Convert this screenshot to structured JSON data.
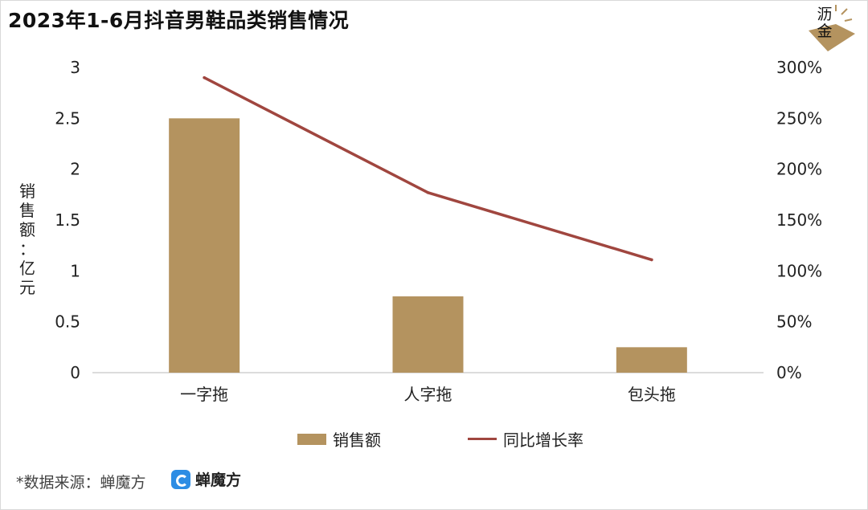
{
  "title": "2023年1-6月抖音男鞋品类销售情况",
  "logo_text": "沥金",
  "source": "*数据来源：蝉魔方",
  "brand_name": "蝉魔方",
  "brand_icon": "c-logo-icon",
  "chart_data": {
    "type": "bar",
    "categories": [
      "一字拖",
      "人字拖",
      "包头拖"
    ],
    "ylabel": "销售额：亿元",
    "ylabel_chars": [
      "销",
      "售",
      "额",
      "：",
      "亿",
      "元"
    ],
    "y_ticks": [
      "0",
      "0.5",
      "1",
      "1.5",
      "2",
      "2.5",
      "3"
    ],
    "y_range": [
      0,
      3
    ],
    "y2_ticks": [
      "0%",
      "50%",
      "100%",
      "150%",
      "200%",
      "250%",
      "300%"
    ],
    "y2_range": [
      0,
      300
    ],
    "series": [
      {
        "name": "销售额",
        "kind": "bar",
        "axis": "left",
        "values": [
          2.5,
          0.75,
          0.25
        ],
        "color": "#b4935f"
      },
      {
        "name": "同比增长率",
        "kind": "line",
        "axis": "right",
        "values": [
          290,
          177,
          111
        ],
        "color": "#a0463f"
      }
    ],
    "grid": false,
    "legend_position": "bottom"
  }
}
